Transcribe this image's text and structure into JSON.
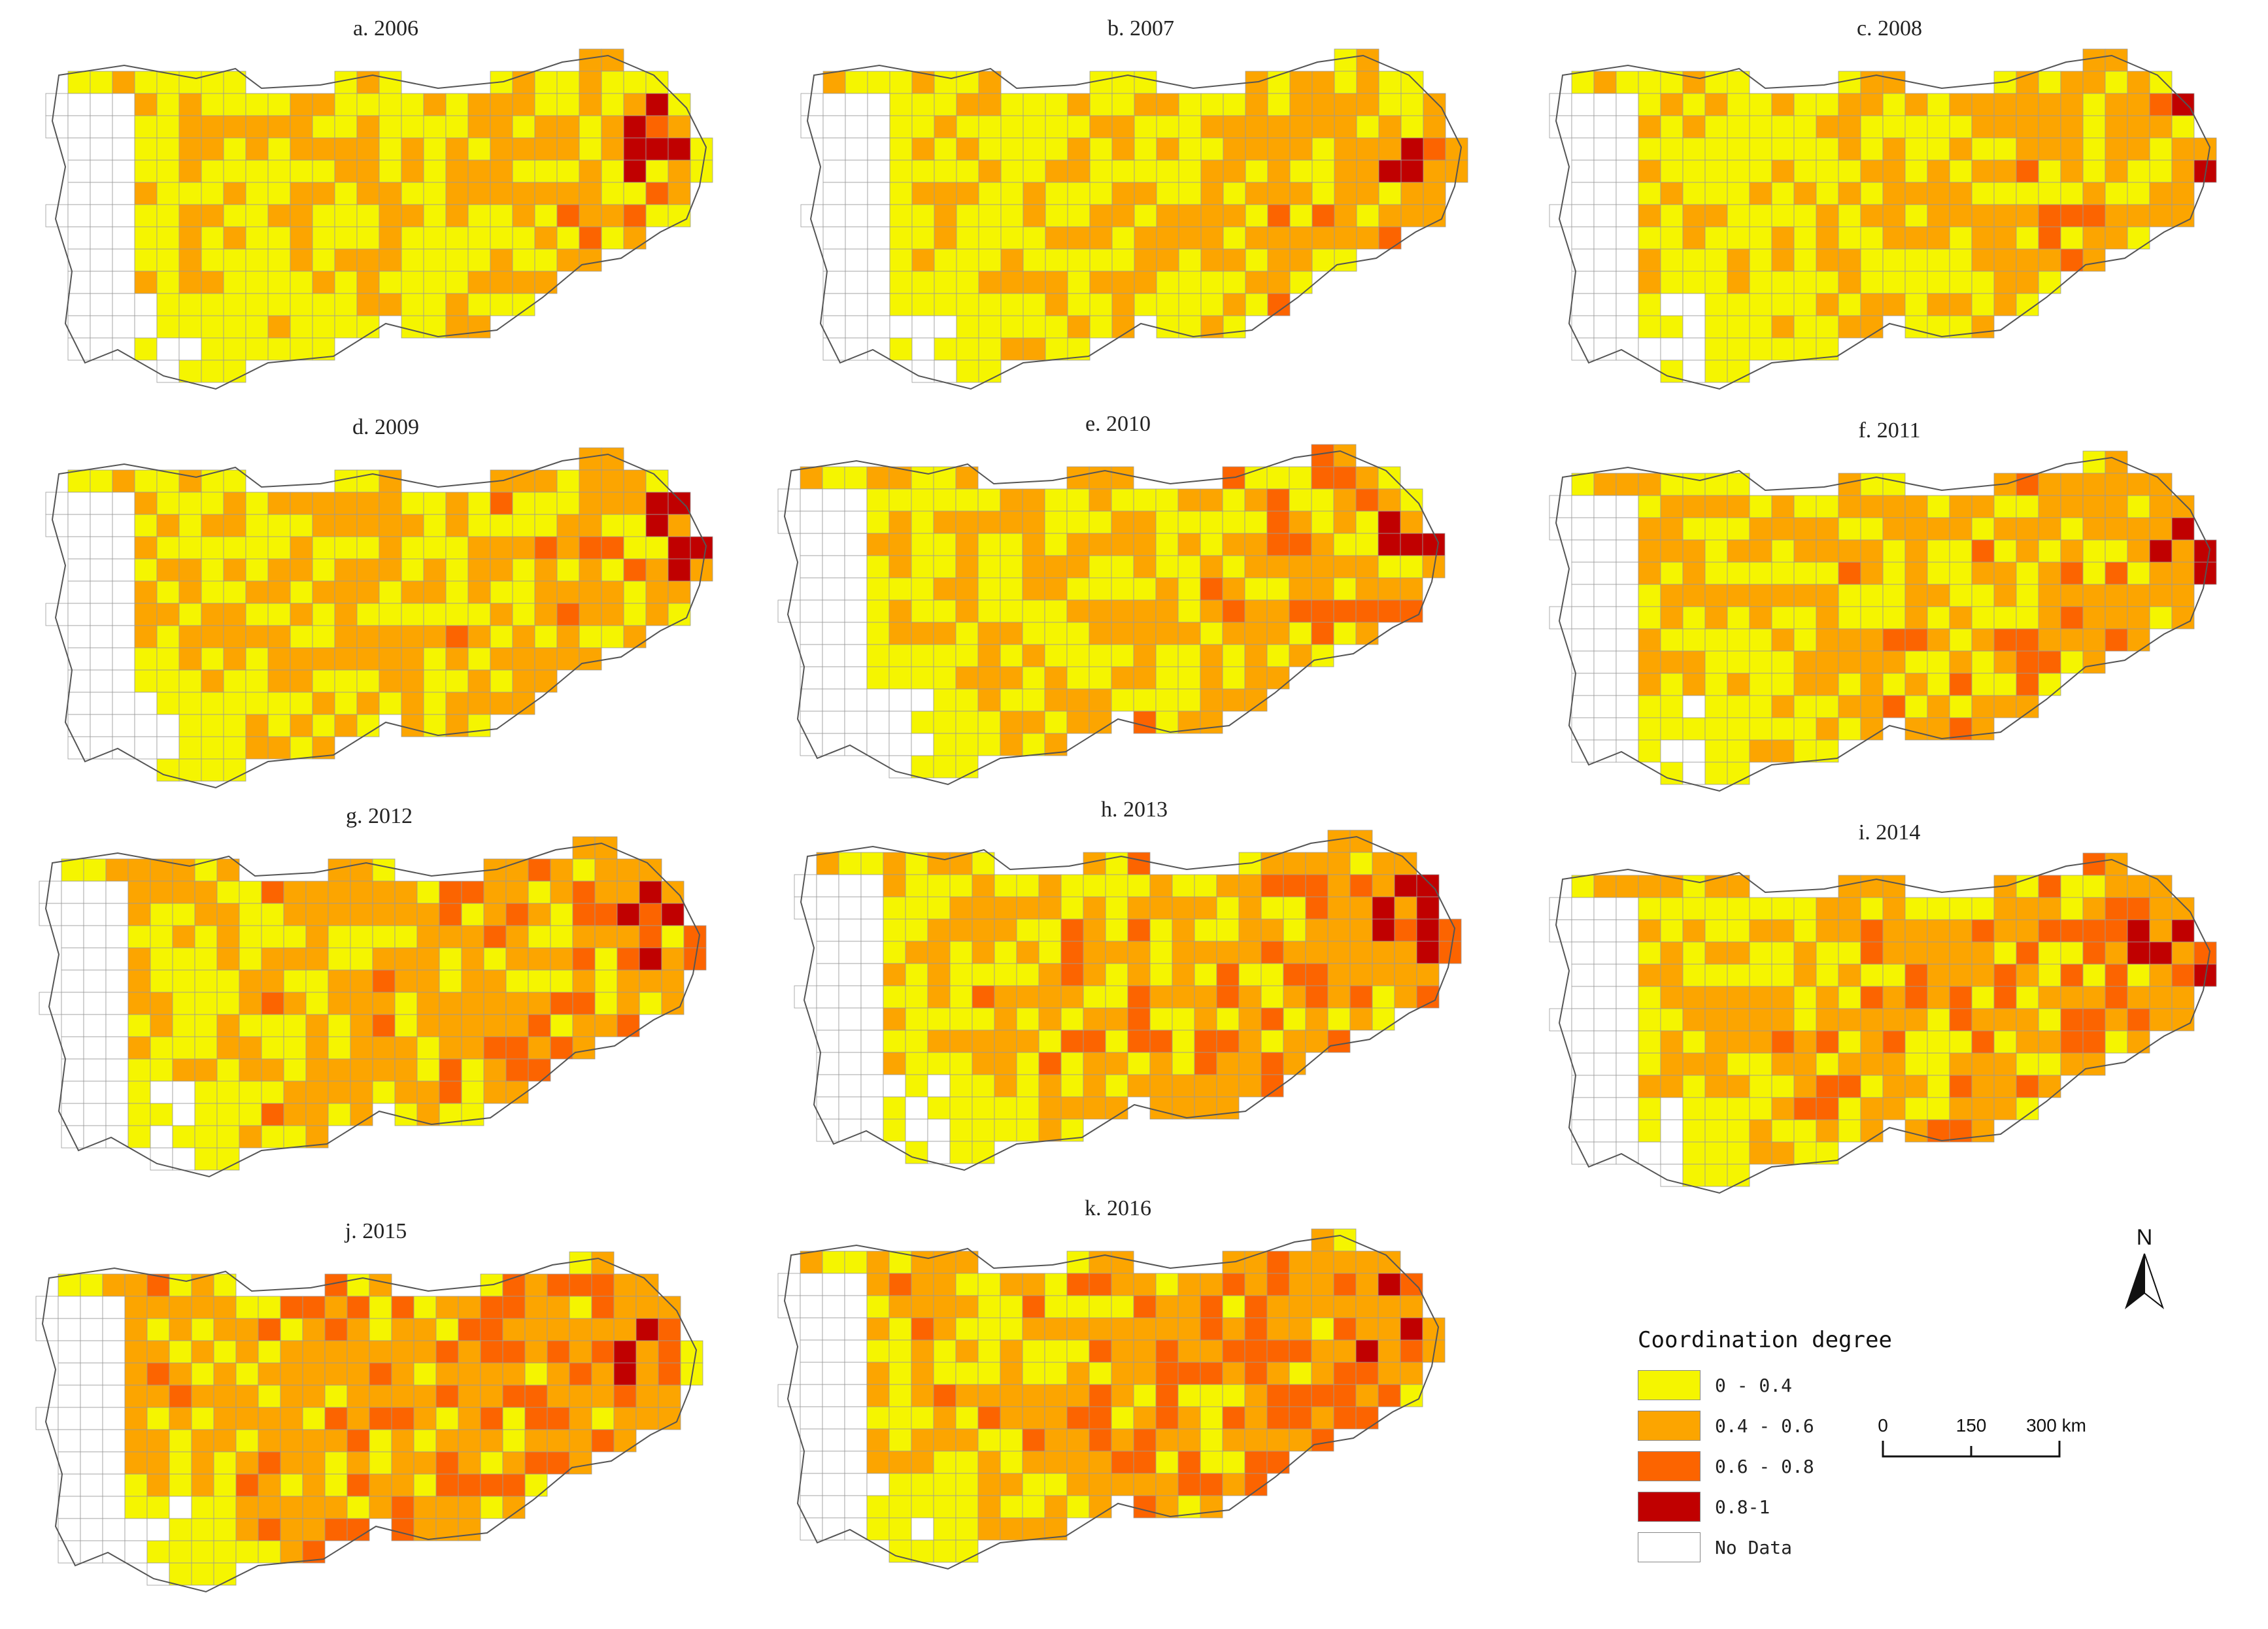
{
  "panels": [
    {
      "label": "a. 2006"
    },
    {
      "label": "b. 2007"
    },
    {
      "label": "c. 2008"
    },
    {
      "label": "d. 2009"
    },
    {
      "label": "e. 2010"
    },
    {
      "label": "f. 2011"
    },
    {
      "label": "g. 2012"
    },
    {
      "label": "h. 2013"
    },
    {
      "label": "i. 2014"
    },
    {
      "label": "j. 2015"
    },
    {
      "label": "k. 2016"
    }
  ],
  "legend": {
    "title": "Coordination degree",
    "classes": [
      {
        "label": "0 - 0.4",
        "color": "#f5f500"
      },
      {
        "label": "0.4 - 0.6",
        "color": "#fca500"
      },
      {
        "label": "0.6 - 0.8",
        "color": "#fc6400"
      },
      {
        "label": "0.8-1",
        "color": "#c00000"
      },
      {
        "label": "No Data",
        "color": "#ffffff"
      }
    ]
  },
  "scale_bar": {
    "ticks": [
      "0",
      "150",
      "300 km"
    ]
  },
  "north_arrow": {
    "label": "N"
  }
}
